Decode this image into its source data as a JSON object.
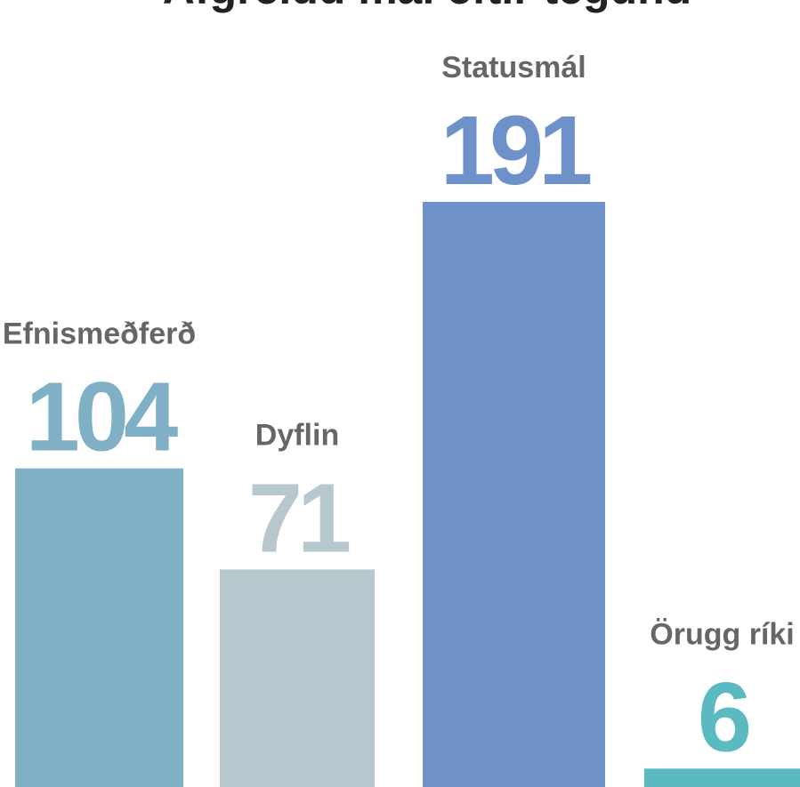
{
  "chart_data": {
    "type": "bar",
    "title": "Afgreidd mál eftir tegund",
    "categories": [
      "Efnismeðferð",
      "Dyflin",
      "Statusmál",
      "Örugg ríki"
    ],
    "values": [
      104,
      71,
      191,
      6
    ],
    "colors": [
      "#7fb0c6",
      "#b7c7ce",
      "#6d91c8",
      "#5bb9c2"
    ]
  }
}
